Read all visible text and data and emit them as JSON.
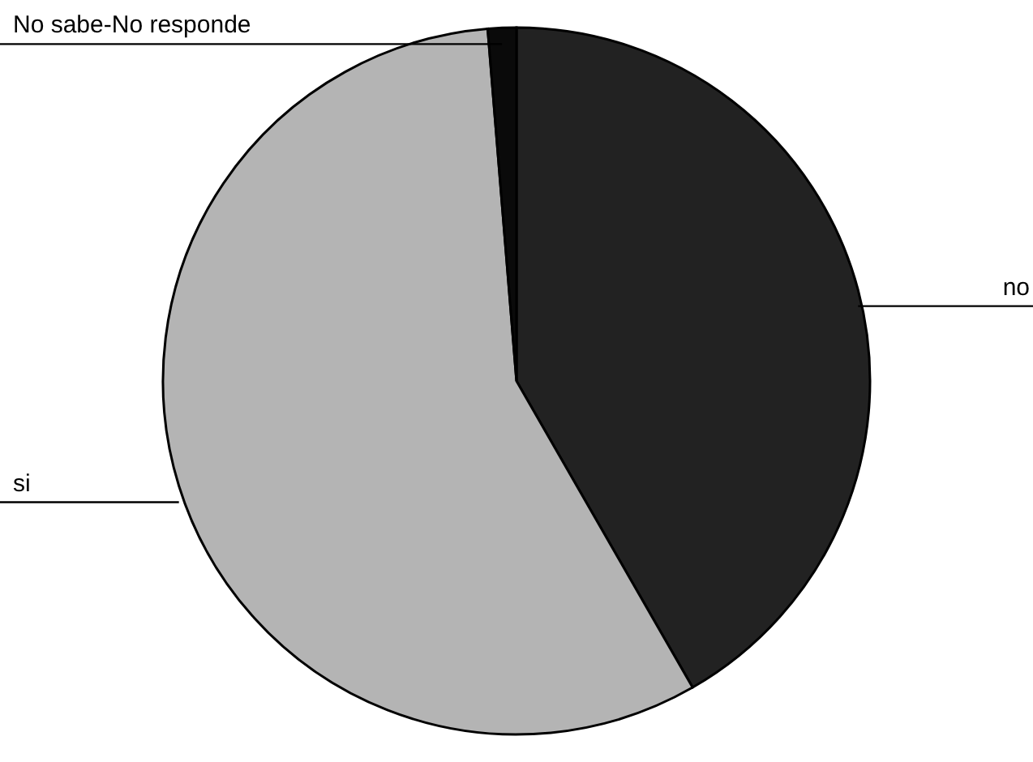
{
  "chart_data": {
    "type": "pie",
    "categories": [
      "no",
      "si",
      "No sabe-No responde"
    ],
    "values": [
      41.7,
      57,
      1.3
    ],
    "colors": [
      "#222222",
      "#b4b4b4",
      "#0a0a0a"
    ]
  }
}
